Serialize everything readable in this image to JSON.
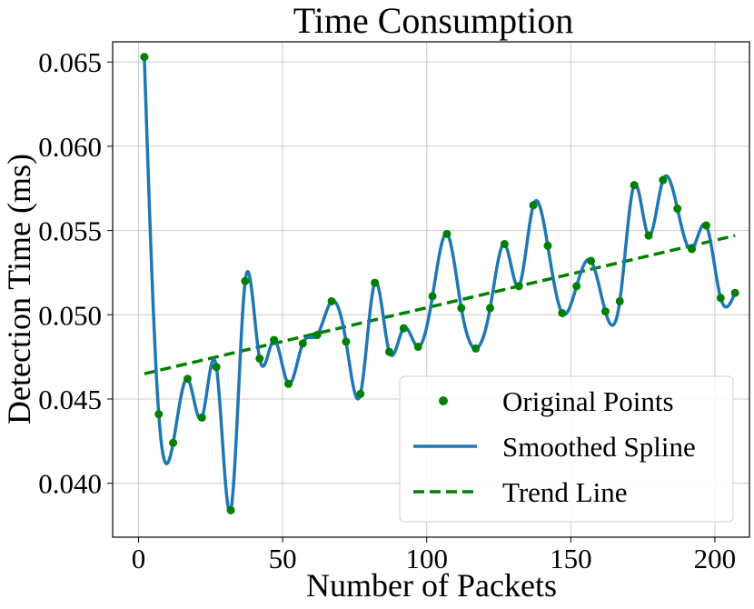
{
  "chart_data": {
    "type": "line",
    "title": "Time Consumption",
    "xlabel": "Number of Packets",
    "ylabel": "Detection Time (ms)",
    "xlim": [
      -9,
      212
    ],
    "ylim": [
      0.0368,
      0.0662
    ],
    "xticks": [
      0,
      50,
      100,
      150,
      200
    ],
    "xtick_labels": [
      "0",
      "50",
      "100",
      "150",
      "200"
    ],
    "yticks": [
      0.04,
      0.045,
      0.05,
      0.055,
      0.06,
      0.065
    ],
    "ytick_labels": [
      "0.040",
      "0.045",
      "0.050",
      "0.055",
      "0.060",
      "0.065"
    ],
    "grid": true,
    "legend_position": "bottom-right",
    "x": [
      2,
      7,
      12,
      17,
      22,
      27,
      32,
      37,
      42,
      47,
      52,
      57,
      62,
      67,
      72,
      77,
      82,
      87,
      92,
      97,
      102,
      107,
      112,
      117,
      122,
      127,
      132,
      137,
      142,
      147,
      152,
      157,
      162,
      167,
      172,
      177,
      182,
      187,
      192,
      197,
      202,
      207
    ],
    "series": [
      {
        "name": "Original Points",
        "kind": "scatter",
        "color": "#008000",
        "values": [
          0.0653,
          0.0441,
          0.0424,
          0.0462,
          0.0439,
          0.0469,
          0.0384,
          0.052,
          0.0474,
          0.0485,
          0.0459,
          0.0483,
          0.0488,
          0.0508,
          0.0484,
          0.0453,
          0.0519,
          0.0478,
          0.0492,
          0.0481,
          0.0511,
          0.0548,
          0.0504,
          0.048,
          0.0504,
          0.0542,
          0.0517,
          0.0565,
          0.0541,
          0.0501,
          0.0517,
          0.0532,
          0.0502,
          0.0508,
          0.0577,
          0.0547,
          0.058,
          0.0563,
          0.0539,
          0.0553,
          0.051,
          0.0513
        ]
      },
      {
        "name": "Smoothed Spline",
        "kind": "spline",
        "color": "#1f77b4"
      },
      {
        "name": "Trend Line",
        "kind": "trend",
        "color": "#008000",
        "endpoints": [
          [
            2,
            0.0465
          ],
          [
            207,
            0.0547
          ]
        ]
      }
    ]
  }
}
